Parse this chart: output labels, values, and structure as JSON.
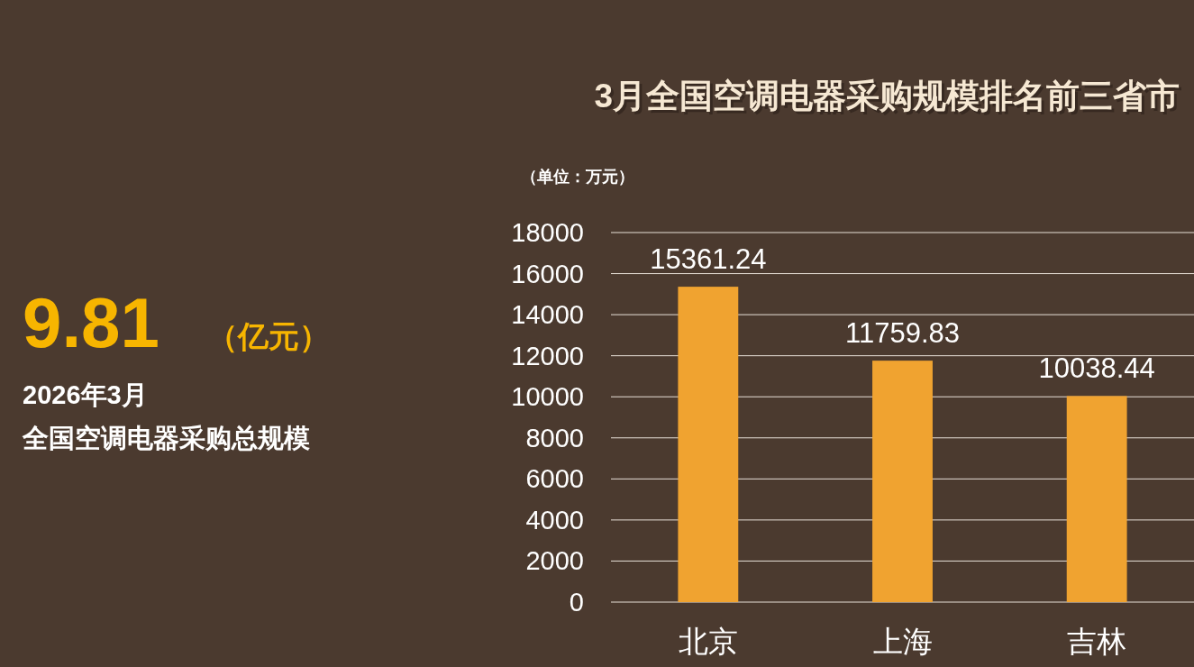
{
  "chart_data": [
    {
      "type": "other",
      "annotations": [
        "9.81",
        "（亿元）",
        "2026年3月",
        "全国空调电器采购总规模"
      ]
    },
    {
      "type": "bar",
      "title": "3月全国空调电器采购规模排名前三省市",
      "ylabel": "（单位：万元）",
      "categories": [
        "北京",
        "上海",
        "吉林"
      ],
      "values": [
        15361.24,
        11759.83,
        10038.44
      ],
      "color": "#f0a330",
      "ylim": [
        0,
        18000
      ],
      "yticks": [
        0,
        2000,
        4000,
        6000,
        8000,
        10000,
        12000,
        14000,
        16000,
        18000
      ],
      "grid": "y",
      "data_labels": true
    }
  ]
}
